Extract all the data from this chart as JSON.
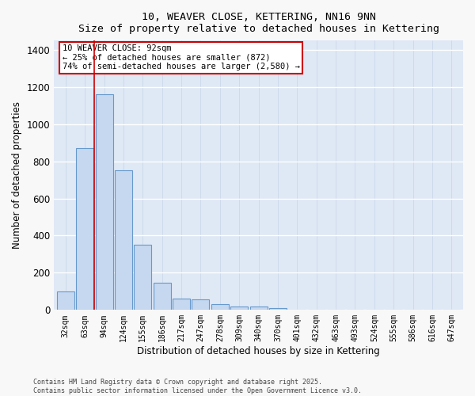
{
  "title": "10, WEAVER CLOSE, KETTERING, NN16 9NN",
  "subtitle": "Size of property relative to detached houses in Kettering",
  "xlabel": "Distribution of detached houses by size in Kettering",
  "ylabel": "Number of detached properties",
  "categories": [
    "32sqm",
    "63sqm",
    "94sqm",
    "124sqm",
    "155sqm",
    "186sqm",
    "217sqm",
    "247sqm",
    "278sqm",
    "309sqm",
    "340sqm",
    "370sqm",
    "401sqm",
    "432sqm",
    "463sqm",
    "493sqm",
    "524sqm",
    "555sqm",
    "586sqm",
    "616sqm",
    "647sqm"
  ],
  "values": [
    100,
    870,
    1160,
    750,
    350,
    145,
    60,
    55,
    30,
    20,
    20,
    10,
    0,
    0,
    0,
    0,
    0,
    0,
    0,
    0,
    0
  ],
  "bar_color": "#c5d8f0",
  "bar_edge_color": "#6699cc",
  "background_color": "#dfe8f5",
  "grid_color_h": "#ffffff",
  "grid_color_v": "#c8d4e8",
  "annotation_line1": "10 WEAVER CLOSE: 92sqm",
  "annotation_line2": "← 25% of detached houses are smaller (872)",
  "annotation_line3": "74% of semi-detached houses are larger (2,580) →",
  "annotation_box_facecolor": "#ffffff",
  "annotation_box_edgecolor": "#cc0000",
  "red_line_x": 1.5,
  "ylim_max": 1450,
  "yticks": [
    0,
    200,
    400,
    600,
    800,
    1000,
    1200,
    1400
  ],
  "footer_line1": "Contains HM Land Registry data © Crown copyright and database right 2025.",
  "footer_line2": "Contains public sector information licensed under the Open Government Licence v3.0."
}
